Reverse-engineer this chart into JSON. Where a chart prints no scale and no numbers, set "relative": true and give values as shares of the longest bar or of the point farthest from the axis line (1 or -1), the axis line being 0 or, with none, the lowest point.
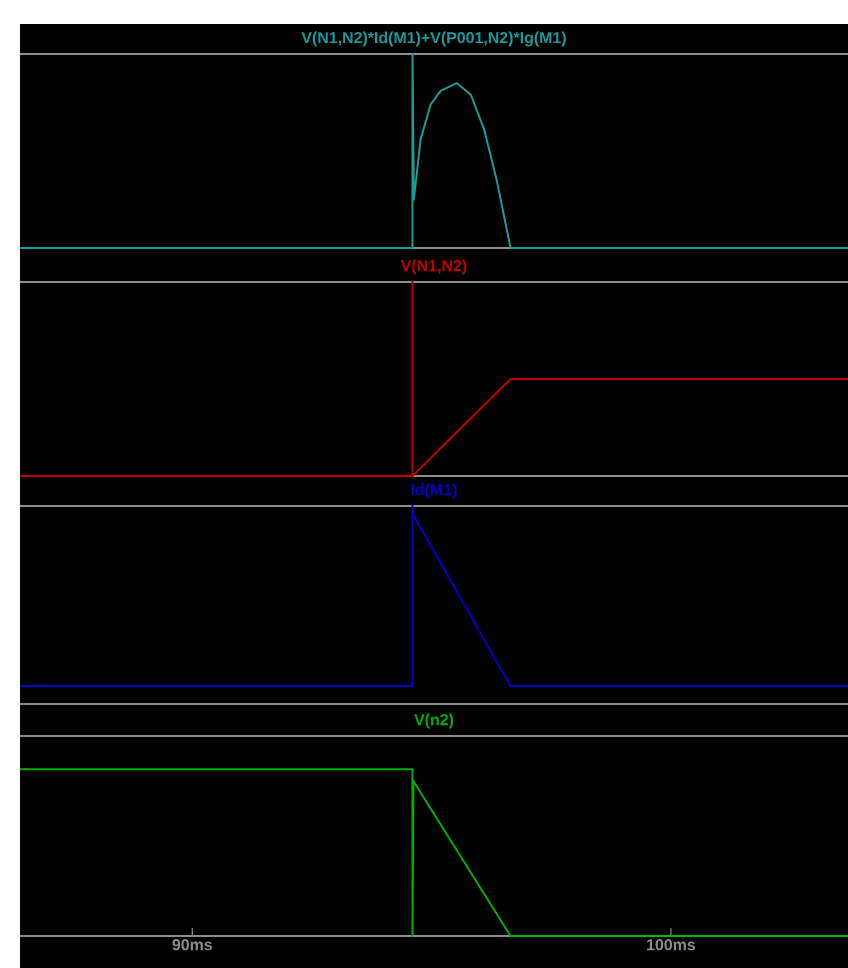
{
  "chart_data": [
    {
      "type": "line",
      "title": "V(N1,N2)*Id(M1)+V(P001,N2)*Ig(M1)",
      "relative": true,
      "xlim": [
        86.4,
        103.7
      ],
      "tick_labels": false,
      "x": [
        86.4,
        94.6,
        94.6,
        94.63,
        94.77,
        94.98,
        95.19,
        95.52,
        95.82,
        96.1,
        96.36,
        96.65,
        103.7
      ],
      "series": [
        {
          "color": "#1a9c9c",
          "values": [
            0,
            0,
            1,
            0.25,
            0.56,
            0.74,
            0.81,
            0.85,
            0.79,
            0.61,
            0.35,
            0,
            0
          ]
        }
      ]
    },
    {
      "type": "line",
      "title": "V(N1,N2)",
      "relative": true,
      "xlim": [
        86.4,
        103.7
      ],
      "tick_labels": false,
      "x": [
        86.4,
        94.6,
        94.6,
        94.6,
        96.65,
        103.7
      ],
      "series": [
        {
          "color": "#c00000",
          "values": [
            0,
            0,
            1,
            0,
            0.5,
            0.5
          ]
        }
      ]
    },
    {
      "type": "line",
      "title": "Id(M1)",
      "relative": true,
      "xlim": [
        86.4,
        103.7
      ],
      "tick_labels": false,
      "x": [
        86.4,
        94.6,
        94.6,
        94.62,
        96.65,
        103.7
      ],
      "series": [
        {
          "color": "#0000c8",
          "values": [
            0,
            0,
            1,
            0.95,
            0,
            0
          ]
        }
      ]
    },
    {
      "type": "line",
      "title": "V(n2)",
      "relative": true,
      "xlim": [
        86.4,
        103.7
      ],
      "xticks": [
        {
          "value": 90,
          "label": "90ms"
        },
        {
          "value": 100,
          "label": "100ms"
        }
      ],
      "tick_labels": "x",
      "x": [
        86.4,
        94.6,
        94.6,
        94.62,
        96.65,
        103.7
      ],
      "series": [
        {
          "color": "#00b000",
          "values": [
            1,
            1,
            0,
            0.93,
            0,
            0
          ]
        }
      ]
    }
  ]
}
